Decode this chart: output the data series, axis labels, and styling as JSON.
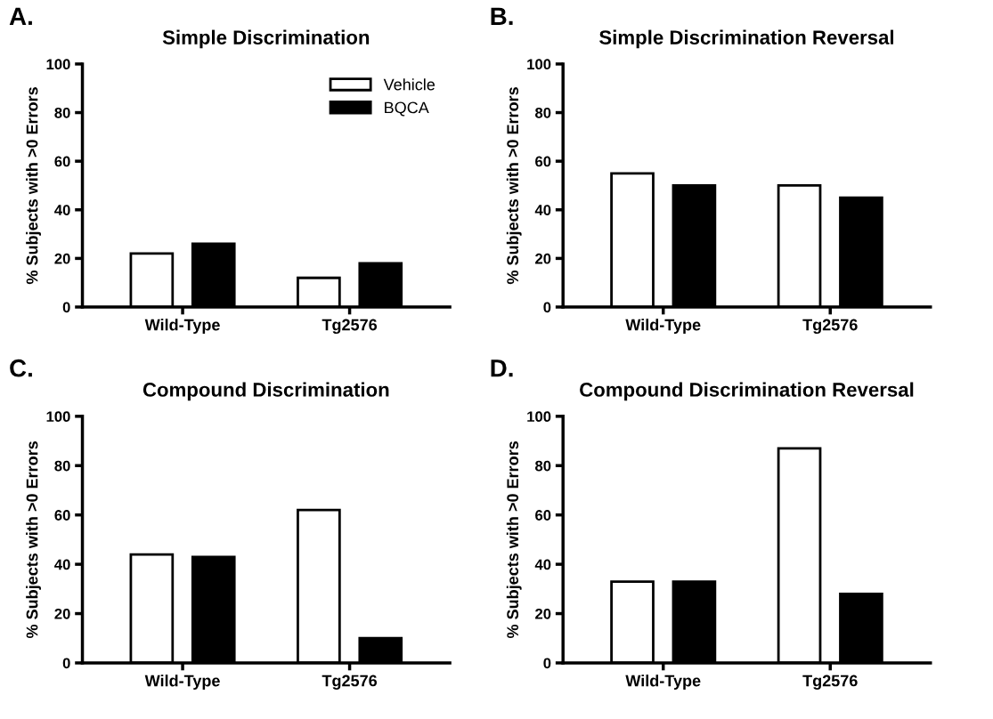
{
  "chart_data": [
    {
      "type": "bar",
      "title": "Simple Discrimination",
      "ylabel": "% Subjects with >0 Errors",
      "annotations": [
        "A."
      ],
      "categories": [
        "Wild-Type",
        "Tg2576"
      ],
      "ylim": [
        0,
        100
      ],
      "yticks": [
        0,
        20,
        40,
        60,
        80,
        100
      ],
      "grid": false,
      "legend": "top right",
      "series": [
        {
          "name": "Vehicle",
          "color": "#ffffff",
          "values": [
            22,
            12
          ]
        },
        {
          "name": "BQCA",
          "color": "#000000",
          "values": [
            26,
            18
          ]
        }
      ]
    },
    {
      "type": "bar",
      "title": "Simple Discrimination Reversal",
      "ylabel": "% Subjects with >0 Errors",
      "annotations": [
        "B."
      ],
      "categories": [
        "Wild-Type",
        "Tg2576"
      ],
      "ylim": [
        0,
        100
      ],
      "yticks": [
        0,
        20,
        40,
        60,
        80,
        100
      ],
      "grid": false,
      "series": [
        {
          "color": "#ffffff",
          "values": [
            55,
            50
          ]
        },
        {
          "color": "#000000",
          "values": [
            50,
            45
          ]
        }
      ]
    },
    {
      "type": "bar",
      "title": "Compound Discrimination",
      "ylabel": "% Subjects with >0 Errors",
      "annotations": [
        "C."
      ],
      "categories": [
        "Wild-Type",
        "Tg2576"
      ],
      "ylim": [
        0,
        100
      ],
      "yticks": [
        0,
        20,
        40,
        60,
        80,
        100
      ],
      "grid": false,
      "series": [
        {
          "color": "#ffffff",
          "values": [
            44,
            62
          ]
        },
        {
          "color": "#000000",
          "values": [
            43,
            10
          ]
        }
      ]
    },
    {
      "type": "bar",
      "title": "Compound Discrimination Reversal",
      "ylabel": "% Subjects with >0 Errors",
      "annotations": [
        "D."
      ],
      "categories": [
        "Wild-Type",
        "Tg2576"
      ],
      "ylim": [
        0,
        100
      ],
      "yticks": [
        0,
        20,
        40,
        60,
        80,
        100
      ],
      "grid": false,
      "series": [
        {
          "color": "#ffffff",
          "values": [
            33,
            87
          ]
        },
        {
          "color": "#000000",
          "values": [
            33,
            28
          ]
        }
      ]
    }
  ]
}
